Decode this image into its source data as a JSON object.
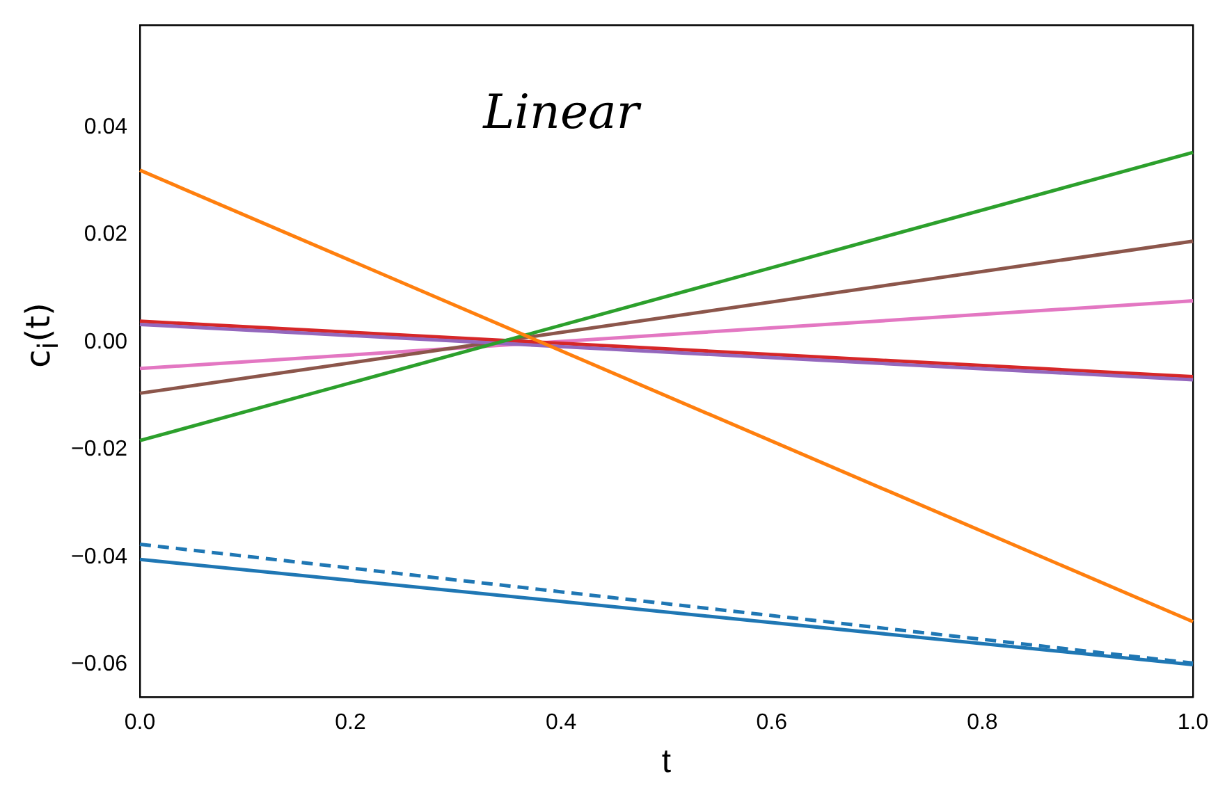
{
  "chart_data": {
    "type": "line",
    "xlabel": "t",
    "ylabel": "c$_{i}$(t)",
    "annotations": [
      "Linear"
    ],
    "x": [
      0,
      1
    ],
    "xlim": [
      0,
      1
    ],
    "ylim": [
      -0.066,
      0.059
    ],
    "xticks": [
      {
        "value": 0,
        "label": "0.0"
      },
      0.2,
      0.4,
      0.6,
      0.8,
      {
        "value": 1,
        "label": "1.0"
      }
    ],
    "yticks": [
      {
        "value": -0.06,
        "label": "−0.06"
      },
      {
        "value": -0.04,
        "label": "−0.04"
      },
      {
        "value": -0.02,
        "label": "−0.02"
      },
      {
        "value": 0,
        "label": "0.00"
      },
      0.02,
      0.04
    ],
    "grid": false,
    "legend": false,
    "marker": "none",
    "series": [
      {
        "color": "#1f77b4",
        "values": [
          -0.0404,
          -0.06
        ]
      },
      {
        "color": "#1f77b4",
        "values": [
          -0.0376,
          -0.0597
        ],
        "line_style": "dashed"
      },
      {
        "color": "#ff7f0e",
        "values": [
          0.032,
          -0.052
        ]
      },
      {
        "color": "#2ca02c",
        "values": [
          -0.0183,
          0.0353
        ]
      },
      {
        "color": "#9467bd",
        "values": [
          0.0033,
          -0.007
        ]
      },
      {
        "color": "#d62728",
        "values": [
          0.0039,
          -0.0064
        ]
      },
      {
        "color": "#8c564b",
        "values": [
          -0.0095,
          0.0188
        ]
      },
      {
        "color": "#e377c2",
        "values": [
          -0.0049,
          0.0077
        ]
      }
    ]
  }
}
